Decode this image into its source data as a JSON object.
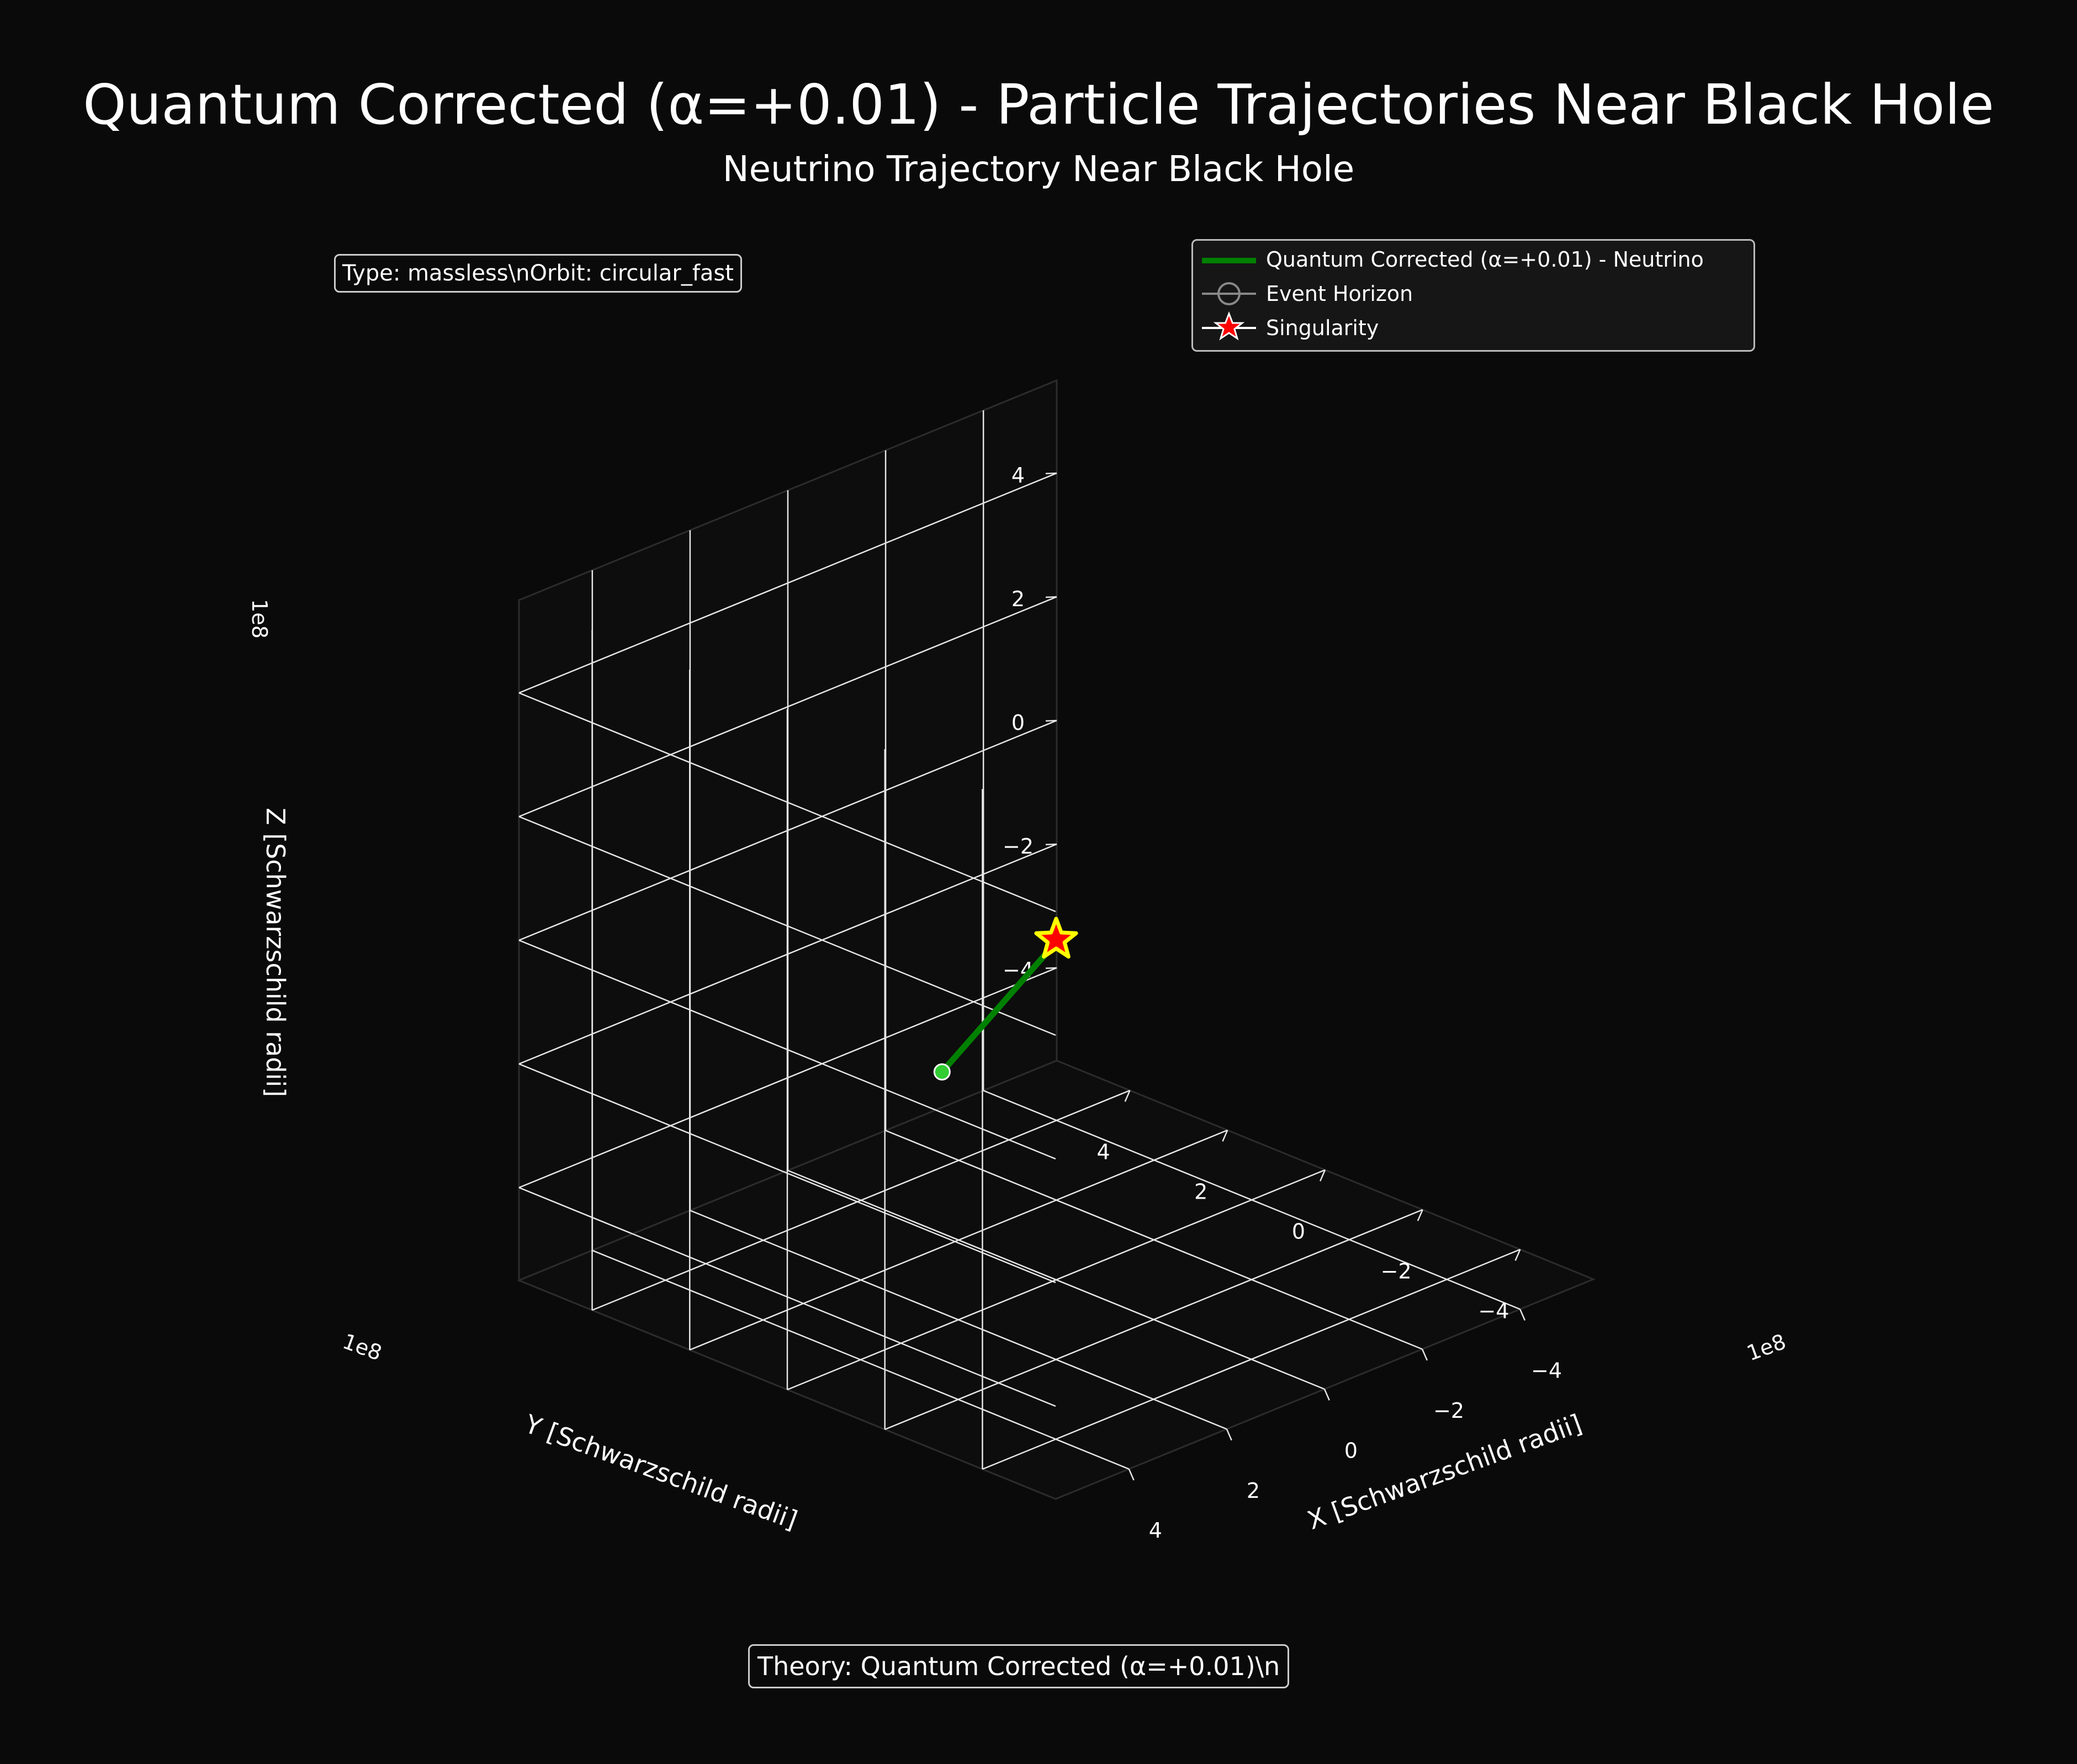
{
  "title": "Quantum Corrected (α=+0.01) - Particle Trajectories Near Black Hole",
  "subtitle": "Neutrino Trajectory Near Black Hole",
  "info_box": "Type: massless\\nOrbit: circular_fast",
  "theory_box": "Theory: Quantum Corrected (α=+0.01)\\n",
  "legend": [
    {
      "label": "Quantum Corrected (α=+0.01) - Neutrino",
      "color": "#008000",
      "marker": "line"
    },
    {
      "label": "Event Horizon",
      "color": "#888888",
      "marker": "circle"
    },
    {
      "label": "Singularity",
      "color": "#ff0000",
      "marker": "star"
    }
  ],
  "chart_data": {
    "type": "line3d",
    "title": "Neutrino Trajectory Near Black Hole",
    "xlabel": "X [Schwarzschild radii]",
    "ylabel": "Y [Schwarzschild radii]",
    "zlabel": "Z [Schwarzschild radii]",
    "x_offset_label": "1e8",
    "y_offset_label": "1e8",
    "z_offset_label": "1e8",
    "xlim": [
      -5.5,
      5.5
    ],
    "ylim": [
      -5.5,
      5.5
    ],
    "zlim": [
      -5.5,
      5.5
    ],
    "xticks": [
      -4,
      -2,
      0,
      2,
      4
    ],
    "yticks": [
      -4,
      -2,
      0,
      2,
      4
    ],
    "zticks": [
      -4,
      -2,
      0,
      2,
      4
    ],
    "xtick_labels": [
      "−4",
      "−2",
      "0",
      "2",
      "4"
    ],
    "ytick_labels": [
      "−4",
      "−2",
      "0",
      "2",
      "4"
    ],
    "ztick_labels": [
      "−4",
      "−2",
      "0",
      "2",
      "4"
    ],
    "grid": true,
    "background": "#0a0a0a",
    "series": [
      {
        "name": "Quantum Corrected (α=+0.01) - Neutrino",
        "color": "#008000",
        "x": [
          0.25,
          4.48
        ],
        "y": [
          -0.15,
          -2.15
        ],
        "z": [
          0.0,
          0.0
        ],
        "start_marker_color": "#32cd32"
      }
    ],
    "singularity": {
      "x": 0,
      "y": 0,
      "z": 0,
      "color": "#ff0000",
      "edge_color": "#ffff00"
    }
  }
}
